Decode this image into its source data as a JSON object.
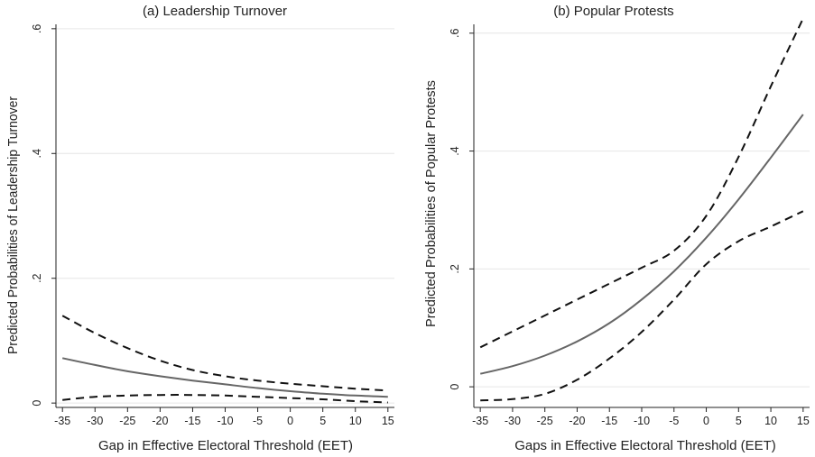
{
  "chart_data": [
    {
      "type": "line",
      "title": "(a) Leadership Turnover",
      "xlabel": "Gap in Effective Electoral Threshold (EET)",
      "ylabel": "Predicted Probabilities of Leadership Turnover",
      "xlim": [
        -36,
        16
      ],
      "ylim": [
        -0.007,
        0.607
      ],
      "xticks": [
        -35,
        -30,
        -25,
        -20,
        -15,
        -10,
        -5,
        0,
        5,
        10,
        15
      ],
      "xtick_labels": [
        "-35",
        "-30",
        "-25",
        "-20",
        "-15",
        "-10",
        "-5",
        "0",
        "5",
        "10",
        "15"
      ],
      "yticks": [
        0,
        0.2,
        0.4,
        0.6
      ],
      "ytick_labels": [
        "0",
        ".2",
        ".4",
        ".6"
      ],
      "grid": true,
      "legend": "none",
      "x": [
        -35,
        -30,
        -25,
        -20,
        -15,
        -10,
        -5,
        0,
        5,
        10,
        15
      ],
      "series": [
        {
          "role": "estimate",
          "style": "solid",
          "color": "#666666",
          "values": [
            0.072,
            0.061,
            0.051,
            0.043,
            0.036,
            0.03,
            0.024,
            0.019,
            0.015,
            0.012,
            0.01
          ]
        },
        {
          "role": "upper bound",
          "style": "dashed",
          "color": "#111111",
          "values": [
            0.14,
            0.112,
            0.088,
            0.068,
            0.053,
            0.043,
            0.036,
            0.031,
            0.027,
            0.023,
            0.02
          ]
        },
        {
          "role": "lower bound",
          "style": "dashed",
          "color": "#111111",
          "values": [
            0.005,
            0.01,
            0.012,
            0.013,
            0.013,
            0.012,
            0.01,
            0.008,
            0.006,
            0.003,
            0.001
          ]
        }
      ]
    },
    {
      "type": "line",
      "title": "(b) Popular Protests",
      "xlabel": "Gaps in Effective Electoral Threshold (EET)",
      "ylabel": "Predicted Probabilities of Popular Protests",
      "xlim": [
        -36,
        16
      ],
      "ylim": [
        -0.035,
        0.615
      ],
      "xticks": [
        -35,
        -30,
        -25,
        -20,
        -15,
        -10,
        -5,
        0,
        5,
        10,
        15
      ],
      "xtick_labels": [
        "-35",
        "-30",
        "-25",
        "-20",
        "-15",
        "-10",
        "-5",
        "0",
        "5",
        "10",
        "15"
      ],
      "yticks": [
        0,
        0.2,
        0.4,
        0.6
      ],
      "ytick_labels": [
        "0",
        ".2",
        ".4",
        ".6"
      ],
      "grid": true,
      "legend": "none",
      "x": [
        -35,
        -30,
        -25,
        -20,
        -15,
        -10,
        -5,
        0,
        5,
        10,
        15
      ],
      "series": [
        {
          "role": "estimate",
          "style": "solid",
          "color": "#666666",
          "values": [
            0.022,
            0.035,
            0.053,
            0.077,
            0.108,
            0.148,
            0.196,
            0.253,
            0.318,
            0.389,
            0.462
          ]
        },
        {
          "role": "upper bound",
          "style": "dashed",
          "color": "#111111",
          "values": [
            0.067,
            0.094,
            0.121,
            0.148,
            0.175,
            0.202,
            0.231,
            0.29,
            0.39,
            0.51,
            0.625
          ]
        },
        {
          "role": "lower bound",
          "style": "dashed",
          "color": "#111111",
          "values": [
            -0.023,
            -0.021,
            -0.012,
            0.012,
            0.048,
            0.093,
            0.148,
            0.208,
            0.247,
            0.272,
            0.298
          ]
        }
      ]
    }
  ]
}
